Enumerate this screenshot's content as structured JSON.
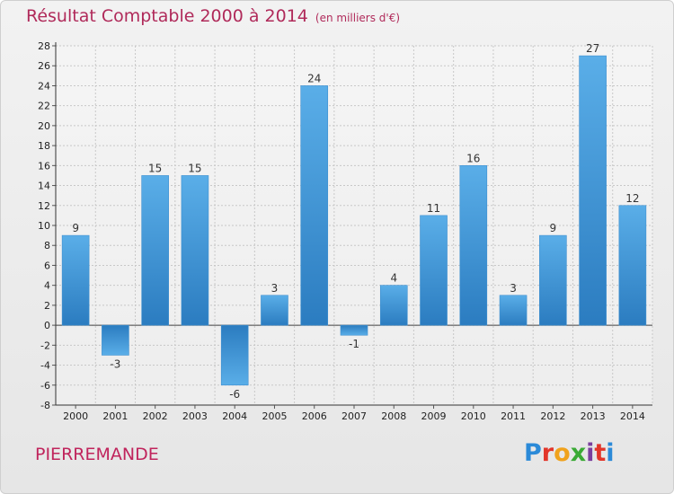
{
  "header": {
    "title": "Résultat Comptable 2000 à 2014",
    "subtitle": "(en milliers d'€)"
  },
  "footer": {
    "commune": "PIERREMANDE",
    "logo": "Proxiti",
    "logo_colors": [
      "#2b8ad8",
      "#e2362a",
      "#f0a21c",
      "#3aaa35",
      "#7a3f9e",
      "#e2362a",
      "#2b8ad8"
    ]
  },
  "colors": {
    "bar_top": "#5aaee8",
    "bar_bottom": "#2b7cc0",
    "title": "#b02a5a",
    "grid": "#c8c8c8"
  },
  "chart_data": {
    "type": "bar",
    "title": "Résultat Comptable 2000 à 2014",
    "subtitle": "(en milliers d'€)",
    "categories": [
      "2000",
      "2001",
      "2002",
      "2003",
      "2004",
      "2005",
      "2006",
      "2007",
      "2008",
      "2009",
      "2010",
      "2011",
      "2012",
      "2013",
      "2014"
    ],
    "values": [
      9,
      -3,
      15,
      15,
      -6,
      3,
      24,
      -1,
      4,
      11,
      16,
      3,
      9,
      27,
      12
    ],
    "ylim": [
      -8,
      28
    ],
    "yticks": [
      -8,
      -6,
      -4,
      -2,
      0,
      2,
      4,
      6,
      8,
      10,
      12,
      14,
      16,
      18,
      20,
      22,
      24,
      26,
      28
    ],
    "xlabel": "",
    "ylabel": "",
    "grid": true
  }
}
